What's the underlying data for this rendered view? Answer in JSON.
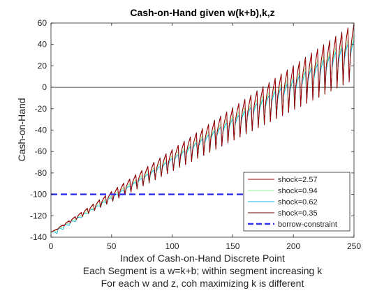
{
  "chart_data": {
    "type": "line",
    "title": "Cash-on-Hand given w(k+b),k,z",
    "xlabel": "Index of Cash-on-Hand Discrete Point",
    "xlabel_lines": [
      "Each Segment is a w=k+b; within segment increasing k",
      "For each w and z, coh maximizing k is different"
    ],
    "ylabel": "Cash-on-Hand",
    "xlim": [
      0,
      250
    ],
    "ylim": [
      -140,
      60
    ],
    "xticks": [
      0,
      50,
      100,
      150,
      200,
      250
    ],
    "yticks": [
      -140,
      -120,
      -100,
      -80,
      -60,
      -40,
      -20,
      0,
      20,
      40,
      60
    ],
    "grid": false,
    "legend_position": "bottom-right",
    "zero_line": 0,
    "segments": {
      "count": 50,
      "points_per_segment": 5,
      "segment_start_first": -135,
      "segment_start_last": 5,
      "segment_rise_first": 2,
      "segment_rise_last": 53
    },
    "series": [
      {
        "name": "shock=2.57",
        "color": "#a00000",
        "style": "solid",
        "offset_at_start": 0.0,
        "offset_at_end": 0.0
      },
      {
        "name": "shock=0.94",
        "color": "#8ff08f",
        "style": "solid",
        "offset_at_start": -2.0,
        "offset_at_end": -10.0
      },
      {
        "name": "shock=0.62",
        "color": "#10b4e0",
        "style": "solid",
        "offset_at_start": -3.5,
        "offset_at_end": -14.0
      },
      {
        "name": "shock=0.35",
        "color": "#6a0000",
        "style": "solid",
        "offset_at_start": 0.5,
        "offset_at_end": 1.5
      },
      {
        "name": "borrow-constraint",
        "color": "#3333ee",
        "style": "dashed",
        "x": [
          0,
          160
        ],
        "y": [
          -100,
          -100
        ]
      }
    ]
  }
}
